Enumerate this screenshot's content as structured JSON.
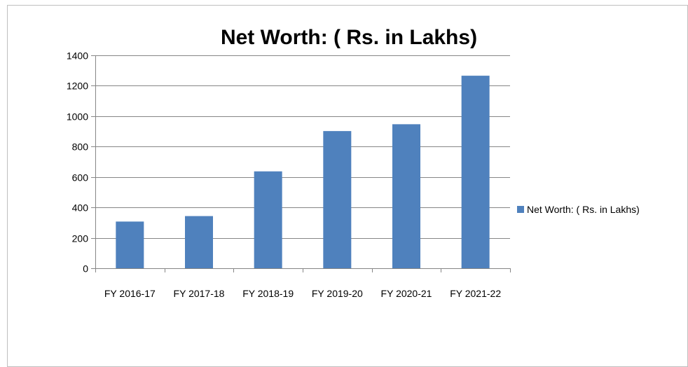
{
  "chart_data": {
    "type": "bar",
    "title": "Net Worth: ( Rs. in Lakhs)",
    "xlabel": "",
    "ylabel": "",
    "categories": [
      "FY 2016-17",
      "FY 2017-18",
      "FY 2018-19",
      "FY 2019-20",
      "FY 2020-21",
      "FY 2021-22"
    ],
    "series": [
      {
        "name": "Net Worth: ( Rs. in Lakhs)",
        "values": [
          307,
          343,
          637,
          902,
          947,
          1266
        ],
        "color": "#4F81BD"
      }
    ],
    "ylim": [
      0,
      1400
    ],
    "yticks": [
      0,
      200,
      400,
      600,
      800,
      1000,
      1200,
      1400
    ],
    "grid": true,
    "legend": "right"
  }
}
